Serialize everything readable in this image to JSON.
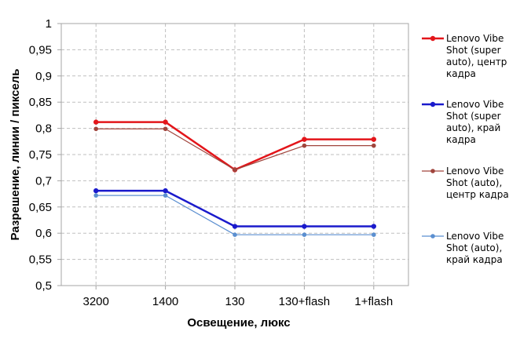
{
  "chart_data": {
    "type": "line",
    "xlabel": "Освещение,  люкс",
    "ylabel": "Разрешение,  линии  / пиксель",
    "categories": [
      "3200",
      "1400",
      "130",
      "130+flash",
      "1+flash"
    ],
    "ylim": [
      0.5,
      1
    ],
    "yticks": [
      "0,5",
      "0,55",
      "0,6",
      "0,65",
      "0,7",
      "0,75",
      "0,8",
      "0,85",
      "0,9",
      "0,95",
      "1"
    ],
    "grid": true,
    "legend_position": "right",
    "series": [
      {
        "name": "Lenovo Vibe Shot (super auto), центр кадра",
        "legend_lines": [
          "Lenovo Vibe",
          "Shot (super",
          "auto), центр",
          "кадра"
        ],
        "values": [
          0.812,
          0.812,
          0.721,
          0.779,
          0.779
        ],
        "color": "#e3151a",
        "thick": true
      },
      {
        "name": "Lenovo Vibe Shot (super auto), край кадра",
        "legend_lines": [
          "Lenovo Vibe",
          "Shot (super",
          "auto), край",
          "кадра"
        ],
        "values": [
          0.681,
          0.681,
          0.613,
          0.613,
          0.613
        ],
        "color": "#1a1acc",
        "thick": true
      },
      {
        "name": "Lenovo Vibe Shot (auto), центр кадра",
        "legend_lines": [
          "Lenovo Vibe",
          "Shot (auto),",
          "центр кадра"
        ],
        "values": [
          0.799,
          0.799,
          0.721,
          0.767,
          0.767
        ],
        "color": "#a0443c",
        "thick": false
      },
      {
        "name": "Lenovo Vibe Shot (auto), край кадра",
        "legend_lines": [
          "Lenovo Vibe",
          "Shot (auto),",
          "край кадра"
        ],
        "values": [
          0.672,
          0.672,
          0.597,
          0.597,
          0.597
        ],
        "color": "#5b8fd0",
        "thick": false
      }
    ]
  }
}
